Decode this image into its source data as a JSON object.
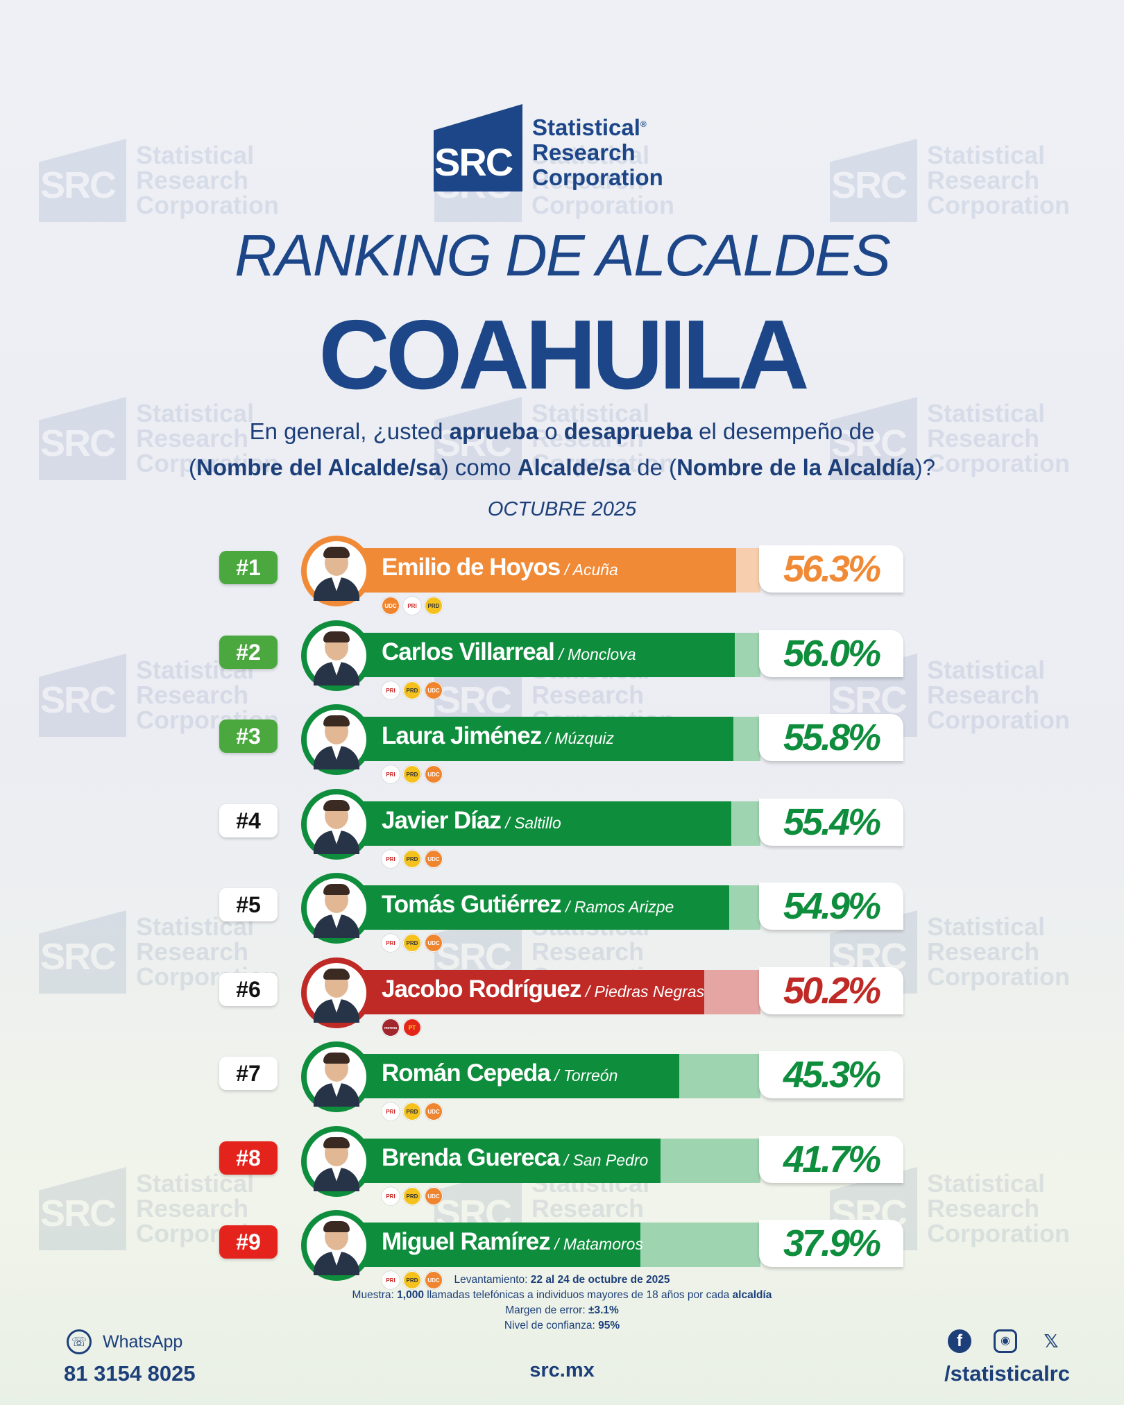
{
  "brand": {
    "logo_abbr": "SRC",
    "logo_line1": "Statistical",
    "logo_line2": "Research",
    "logo_line3": "Corporation",
    "registered": "®"
  },
  "subtitle": "RANKING DE ALCALDES",
  "title": "COAHUILA",
  "question": {
    "p1": "En general, ¿usted ",
    "b1": "aprueba",
    "p2": " o ",
    "b2": "desaprueba",
    "p3": " el desempeño de",
    "p4": "(",
    "b3": "Nombre del Alcalde/sa",
    "p5": ") como ",
    "b4": "Alcalde/sa",
    "p6": " de (",
    "b5": "Nombre de la Alcaldía",
    "p7": ")?"
  },
  "date": "OCTUBRE 2025",
  "chart_data": {
    "type": "bar",
    "categories": [
      "Emilio de Hoyos",
      "Carlos Villarreal",
      "Laura Jiménez",
      "Javier Díaz",
      "Tomás Gutiérrez",
      "Jacobo Rodríguez",
      "Román Cepeda",
      "Brenda Guereca",
      "Miguel Ramírez"
    ],
    "values": [
      56.3,
      56.0,
      55.8,
      55.4,
      54.9,
      50.2,
      45.3,
      41.7,
      37.9
    ],
    "ylim": [
      0,
      100
    ],
    "rows": [
      {
        "rank": "#1",
        "name": "Emilio de Hoyos",
        "city": " / Acuña",
        "label": "56.3%",
        "value": 56.3,
        "rank_color": "green",
        "bar_color": "#f08a36",
        "bg_color": "#f7cfae",
        "text_color": "#f08a36",
        "ring_color": "#f08a36",
        "parties": [
          "UDC",
          "PRI",
          "PRD"
        ]
      },
      {
        "rank": "#2",
        "name": "Carlos Villarreal",
        "city": " / Monclova",
        "label": "56.0%",
        "value": 56.0,
        "rank_color": "green",
        "bar_color": "#0e8d3c",
        "bg_color": "#9fd4b1",
        "text_color": "#0e8d3c",
        "ring_color": "#0e8d3c",
        "parties": [
          "PRI",
          "PRD",
          "UDC"
        ]
      },
      {
        "rank": "#3",
        "name": "Laura Jiménez",
        "city": " / Múzquiz",
        "label": "55.8%",
        "value": 55.8,
        "rank_color": "green",
        "bar_color": "#0e8d3c",
        "bg_color": "#9fd4b1",
        "text_color": "#0e8d3c",
        "ring_color": "#0e8d3c",
        "parties": [
          "PRI",
          "PRD",
          "UDC"
        ]
      },
      {
        "rank": "#4",
        "name": "Javier Díaz",
        "city": " / Saltillo",
        "label": "55.4%",
        "value": 55.4,
        "rank_color": "white",
        "bar_color": "#0e8d3c",
        "bg_color": "#9fd4b1",
        "text_color": "#0e8d3c",
        "ring_color": "#0e8d3c",
        "parties": [
          "PRI",
          "PRD",
          "UDC"
        ]
      },
      {
        "rank": "#5",
        "name": "Tomás Gutiérrez",
        "city": " / Ramos Arizpe",
        "label": "54.9%",
        "value": 54.9,
        "rank_color": "white",
        "bar_color": "#0e8d3c",
        "bg_color": "#9fd4b1",
        "text_color": "#0e8d3c",
        "ring_color": "#0e8d3c",
        "parties": [
          "PRI",
          "PRD",
          "UDC"
        ]
      },
      {
        "rank": "#6",
        "name": "Jacobo Rodríguez",
        "city": " / Piedras Negras",
        "label": "50.2%",
        "value": 50.2,
        "rank_color": "white",
        "bar_color": "#bf2a26",
        "bg_color": "#e5a5a3",
        "text_color": "#bf2a26",
        "ring_color": "#bf2a26",
        "parties": [
          "morena",
          "PT"
        ]
      },
      {
        "rank": "#7",
        "name": "Román Cepeda",
        "city": " / Torreón",
        "label": "45.3%",
        "value": 45.3,
        "rank_color": "white",
        "bar_color": "#0e8d3c",
        "bg_color": "#9fd4b1",
        "text_color": "#0e8d3c",
        "ring_color": "#0e8d3c",
        "parties": [
          "PRI",
          "PRD",
          "UDC"
        ]
      },
      {
        "rank": "#8",
        "name": "Brenda Guereca",
        "city": " / San Pedro",
        "label": "41.7%",
        "value": 41.7,
        "rank_color": "red",
        "bar_color": "#0e8d3c",
        "bg_color": "#9fd4b1",
        "text_color": "#0e8d3c",
        "ring_color": "#0e8d3c",
        "parties": [
          "PRI",
          "PRD",
          "UDC"
        ]
      },
      {
        "rank": "#9",
        "name": "Miguel Ramírez",
        "city": " / Matamoros",
        "label": "37.9%",
        "value": 37.9,
        "rank_color": "red",
        "bar_color": "#0e8d3c",
        "bg_color": "#9fd4b1",
        "text_color": "#0e8d3c",
        "ring_color": "#0e8d3c",
        "parties": [
          "PRI",
          "PRD",
          "UDC"
        ]
      }
    ]
  },
  "notes": {
    "l1a": "Levantamiento: ",
    "l1b": "22 al 24 de octubre de 2025",
    "l2a": "Muestra: ",
    "l2b": "1,000",
    "l2c": " llamadas telefónicas a individuos mayores de 18 años por cada ",
    "l2d": "alcaldía",
    "l3a": "Margen de error: ",
    "l3b": "±3.1%",
    "l4a": "Nivel de confianza: ",
    "l4b": "95%"
  },
  "footer": {
    "whatsapp_label": "WhatsApp",
    "phone": "81 3154 8025",
    "site": "src.mx",
    "handle": "/statisticalrc",
    "icons": [
      "whatsapp-icon",
      "facebook-icon",
      "instagram-icon",
      "x-icon"
    ]
  }
}
